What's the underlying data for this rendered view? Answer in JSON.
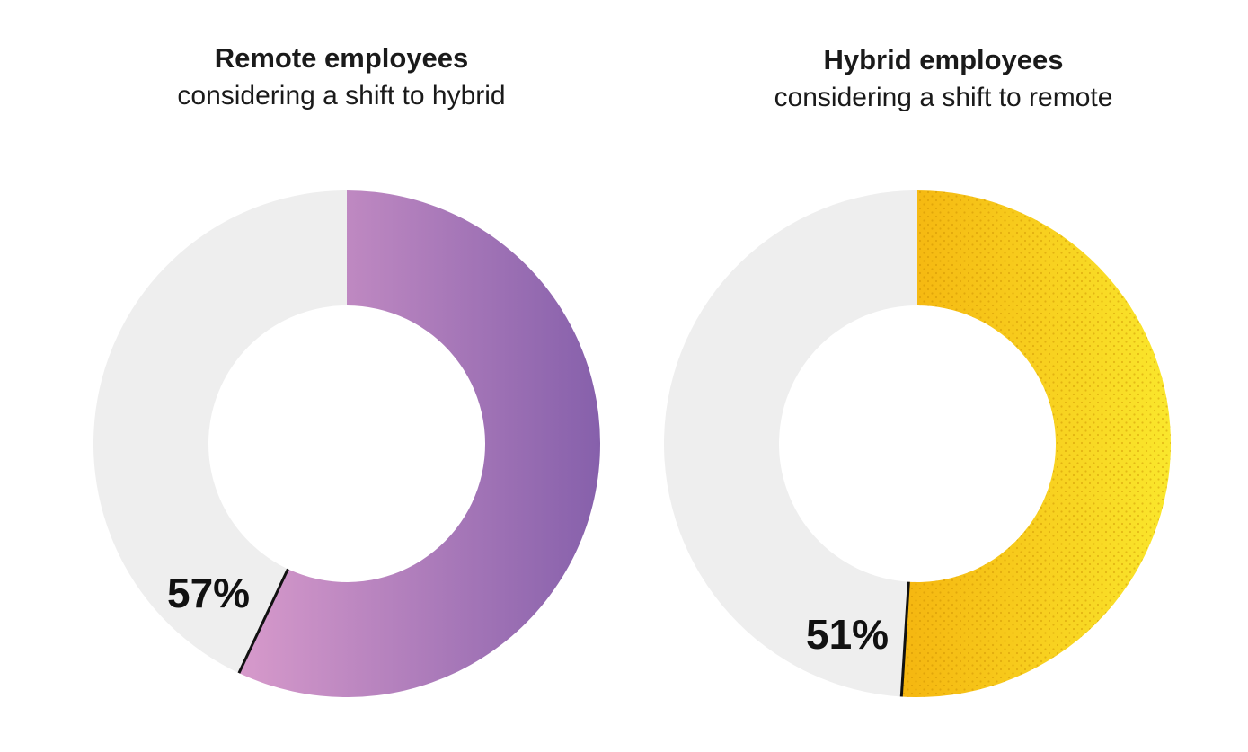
{
  "chart_data": [
    {
      "type": "pie",
      "title": "Remote employees",
      "subtitle": "considering a shift to hybrid",
      "values": [
        57,
        43
      ],
      "value_label": "57%",
      "colors": {
        "highlight_start": "#d79acb",
        "highlight_end": "#8660ab",
        "remainder": "#eeeeee"
      },
      "style": "donut"
    },
    {
      "type": "pie",
      "title": "Hybrid employees",
      "subtitle": "considering a shift to remote",
      "values": [
        51,
        49
      ],
      "value_label": "51%",
      "colors": {
        "highlight_start": "#f5b610",
        "highlight_end": "#fae72c",
        "remainder": "#eeeeee"
      },
      "style": "donut"
    }
  ]
}
